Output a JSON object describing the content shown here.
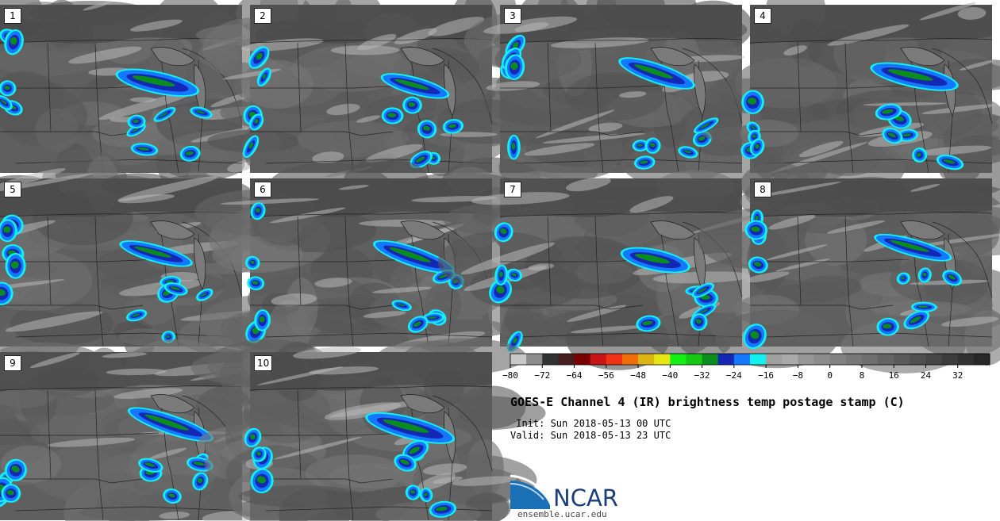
{
  "panels": [
    {
      "label": "1",
      "seed": 11
    },
    {
      "label": "2",
      "seed": 22
    },
    {
      "label": "3",
      "seed": 33
    },
    {
      "label": "4",
      "seed": 44
    },
    {
      "label": "5",
      "seed": 55
    },
    {
      "label": "6",
      "seed": 66
    },
    {
      "label": "7",
      "seed": 77
    },
    {
      "label": "8",
      "seed": 88
    },
    {
      "label": "9",
      "seed": 99
    },
    {
      "label": "10",
      "seed": 111
    }
  ],
  "colorbar": {
    "colors": [
      "#c8c8c8",
      "#8c8c8c",
      "#323232",
      "#461e1e",
      "#780000",
      "#c81414",
      "#f03214",
      "#f06e0a",
      "#dcb414",
      "#e6e614",
      "#14f014",
      "#14c814",
      "#0a8c1e",
      "#1428b4",
      "#1478ff",
      "#14f0f0",
      "#a0a0a0",
      "#aaaaaa",
      "#969696",
      "#8c8c8c",
      "#828282",
      "#787878",
      "#6e6e6e",
      "#646464",
      "#5a5a5a",
      "#505050",
      "#464646",
      "#3c3c3c",
      "#323232",
      "#282828"
    ],
    "tick_labels": [
      "−80",
      "−72",
      "−64",
      "−56",
      "−48",
      "−40",
      "−32",
      "−24",
      "−16",
      "−8",
      "0",
      "8",
      "16",
      "24",
      "32"
    ]
  },
  "title": "GOES-E Channel 4 (IR) brightness temp postage stamp (C)",
  "init_text": " Init: Sun 2018-05-13 00 UTC",
  "valid_text": "Valid: Sun 2018-05-13 23 UTC",
  "logo": {
    "name": "NCAR",
    "url": "ensemble.ucar.edu",
    "color": "#1a6fb5"
  }
}
